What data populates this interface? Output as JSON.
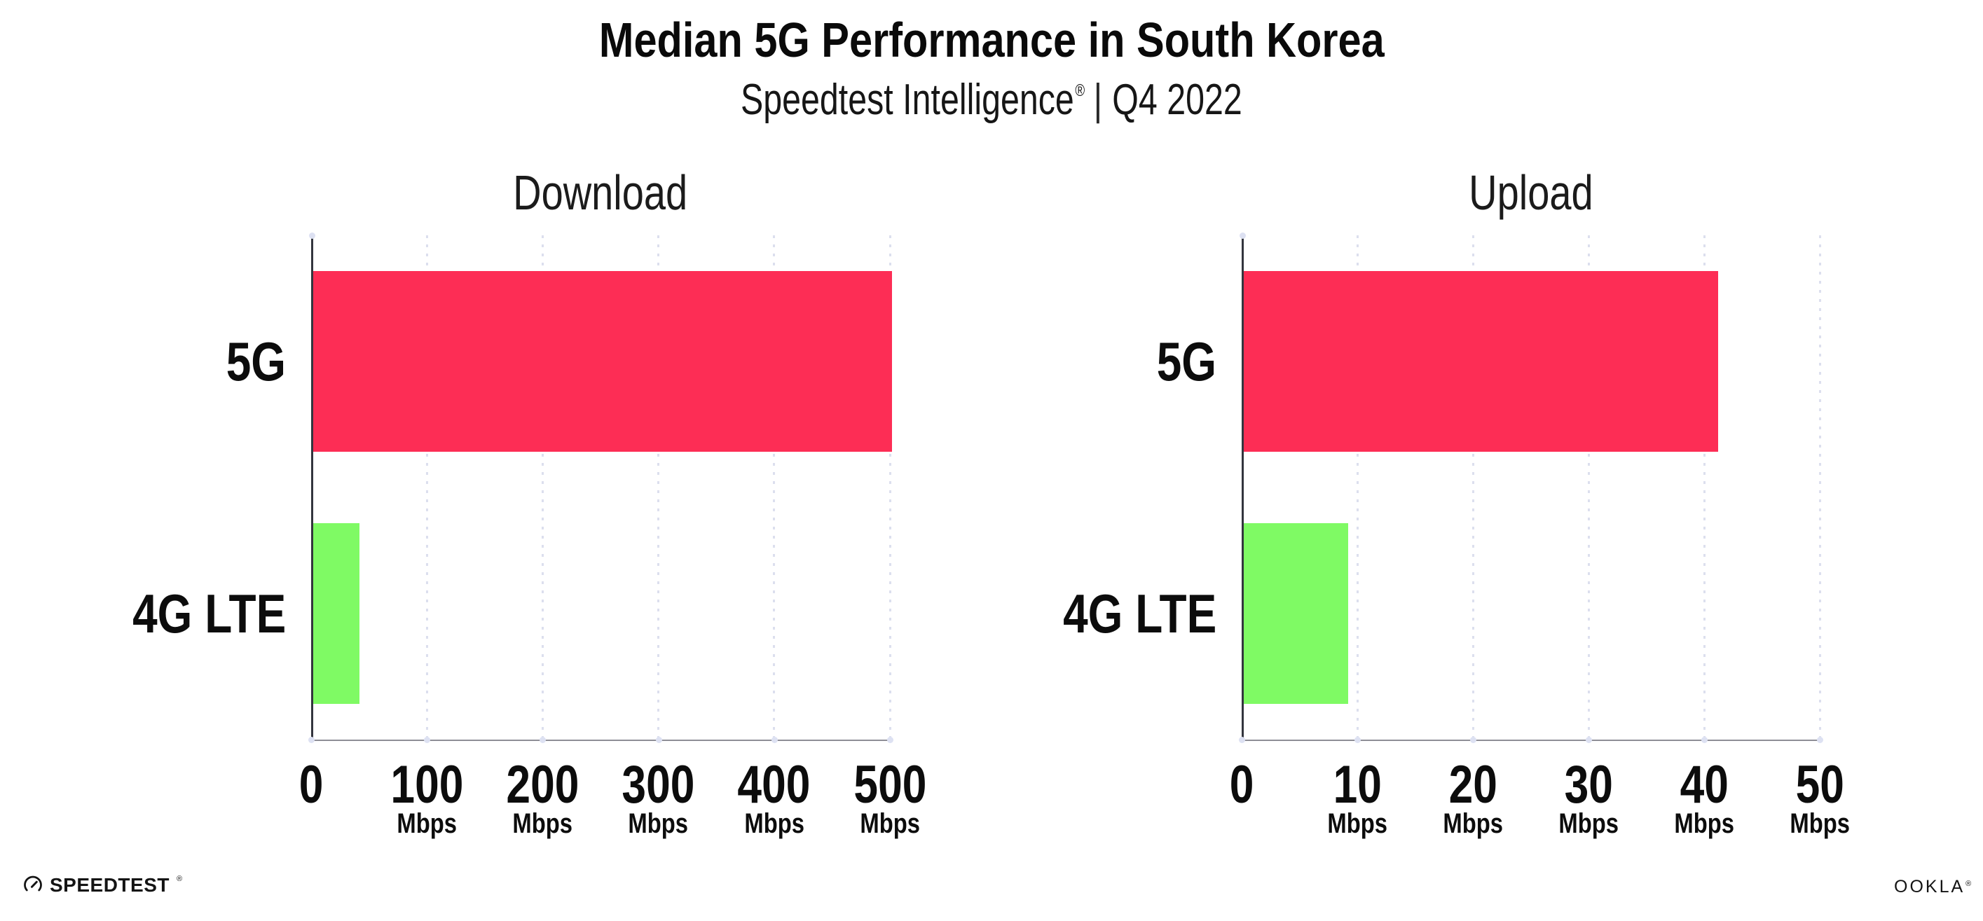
{
  "header": {
    "title": "Median 5G Performance in South Korea",
    "subtitle_brand": "Speedtest Intelligence",
    "subtitle_reg": "®",
    "subtitle_sep": "|",
    "subtitle_period": "Q4 2022"
  },
  "colors": {
    "bar_5g": "#FD2D55",
    "bar_4g": "#7FFA64",
    "gridline": "#DCDFEE",
    "axis_x": "#8E8E96",
    "axis_y": "#33353E",
    "text": "#0C0C0C"
  },
  "chart_data": [
    {
      "type": "bar",
      "orientation": "horizontal",
      "title": "Download",
      "categories": [
        "5G",
        "4G LTE"
      ],
      "values": [
        500,
        40
      ],
      "unit": "Mbps",
      "xlim": [
        0,
        500
      ],
      "ticks": [
        0,
        100,
        200,
        300,
        400,
        500
      ],
      "tick_unit": "Mbps",
      "grid": "vertical-dotted",
      "legend": "none"
    },
    {
      "type": "bar",
      "orientation": "horizontal",
      "title": "Upload",
      "categories": [
        "5G",
        "4G LTE"
      ],
      "values": [
        41,
        9
      ],
      "unit": "Mbps",
      "xlim": [
        0,
        50
      ],
      "ticks": [
        0,
        10,
        20,
        30,
        40,
        50
      ],
      "tick_unit": "Mbps",
      "grid": "vertical-dotted",
      "legend": "none"
    }
  ],
  "footer": {
    "speedtest_label": "SPEEDTEST",
    "speedtest_mark": "®",
    "ookla_label": "OOKLA",
    "ookla_mark": "®"
  }
}
